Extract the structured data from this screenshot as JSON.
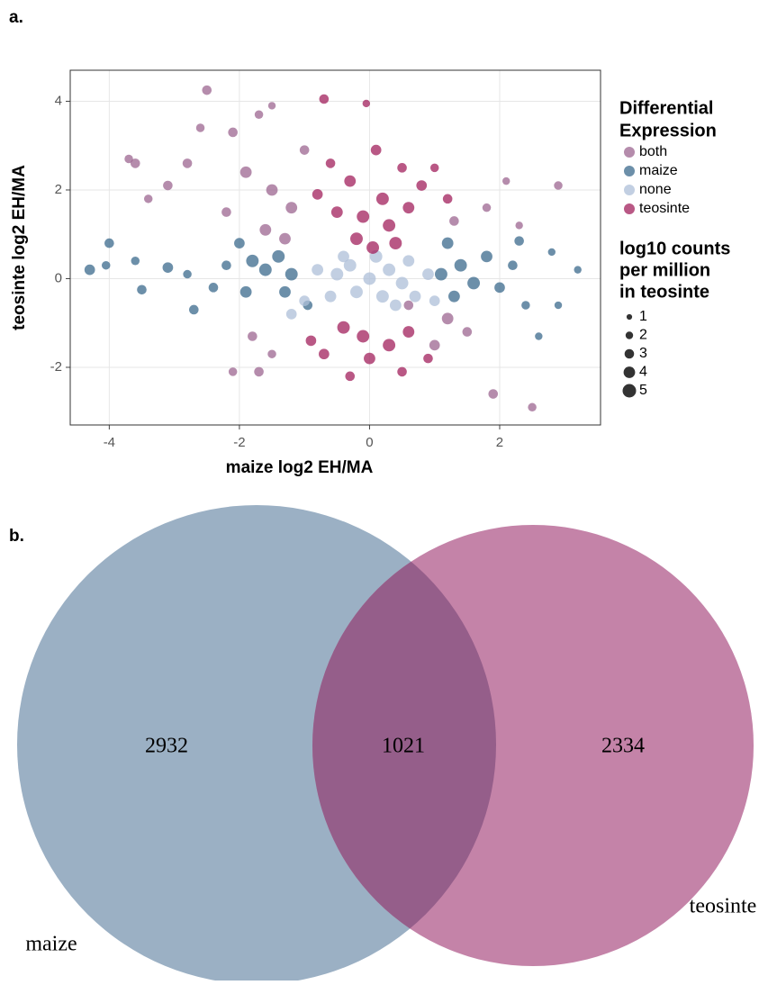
{
  "chart_data": [
    {
      "type": "scatter",
      "panel_label": "a.",
      "x_label": "maize log2 EH/MA",
      "y_label": "teosinte log2 EH/MA",
      "xlim": [
        -4.6,
        3.55
      ],
      "ylim": [
        -3.3,
        4.7
      ],
      "xticks": [
        -4,
        -2,
        0,
        2
      ],
      "yticks": [
        -2,
        0,
        2,
        4
      ],
      "grid": true,
      "legend_title": [
        "Differential",
        "Expression"
      ],
      "size_legend": {
        "title": [
          "log10 counts",
          "per million",
          "in teosinte"
        ],
        "values": [
          1,
          2,
          3,
          4,
          5
        ]
      },
      "series": [
        {
          "name": "both",
          "color": "#9c6690",
          "x": [
            -2.5,
            -1.7,
            -1.5,
            -2.1,
            -2.6,
            -3.7,
            -3.6,
            -2.8,
            -3.1,
            -3.4,
            -1.9,
            -1.5,
            -1.2,
            -2.2,
            -1.6,
            -1.0,
            -1.8,
            -1.5,
            -2.1,
            -1.7,
            1.2,
            1.5,
            1.0,
            1.3,
            1.8,
            2.3,
            2.9,
            1.9,
            2.5,
            0.6,
            -1.3,
            2.1
          ],
          "values": [
            4.25,
            3.7,
            3.9,
            3.3,
            3.4,
            2.7,
            2.6,
            2.6,
            2.1,
            1.8,
            2.4,
            2.0,
            1.6,
            1.5,
            1.1,
            2.9,
            -1.3,
            -1.7,
            -2.1,
            -2.1,
            -0.9,
            -1.2,
            -1.5,
            1.3,
            1.6,
            1.2,
            2.1,
            -2.6,
            -2.9,
            -0.6,
            0.9,
            2.2
          ],
          "sizes": [
            3,
            2.5,
            2,
            3,
            2.5,
            2.5,
            3,
            3,
            3,
            2.5,
            4,
            4,
            4,
            3,
            4,
            3,
            3,
            2.5,
            2.5,
            3,
            4,
            3,
            3.5,
            3,
            2.5,
            2,
            2.5,
            3,
            2.5,
            3,
            4,
            2
          ]
        },
        {
          "name": "maize",
          "color": "#3b6a8c",
          "x": [
            -4.3,
            -4.0,
            -4.05,
            -3.5,
            -3.1,
            -3.6,
            -2.8,
            -2.7,
            -2.2,
            -1.8,
            -1.6,
            -1.4,
            -1.2,
            -1.9,
            -1.3,
            -2.0,
            -2.4,
            1.1,
            1.4,
            1.6,
            1.3,
            1.8,
            2.0,
            2.2,
            2.4,
            2.8,
            3.2,
            2.9,
            1.2,
            2.3,
            -0.95,
            2.6
          ],
          "values": [
            0.2,
            0.8,
            0.3,
            -0.25,
            0.25,
            0.4,
            0.1,
            -0.7,
            0.3,
            0.4,
            0.2,
            0.5,
            0.1,
            -0.3,
            -0.3,
            0.8,
            -0.2,
            0.1,
            0.3,
            -0.1,
            -0.4,
            0.5,
            -0.2,
            0.3,
            -0.6,
            0.6,
            0.2,
            -0.6,
            0.8,
            0.85,
            -0.6,
            -1.3
          ],
          "sizes": [
            3.5,
            3,
            2.5,
            3,
            3.5,
            2.5,
            2.5,
            3,
            3,
            4.5,
            4.5,
            4.5,
            4.5,
            4,
            4,
            3.5,
            3,
            4.5,
            4.5,
            4.5,
            4,
            4,
            3.5,
            3,
            2.5,
            2,
            2,
            2,
            4,
            3,
            3,
            2
          ]
        },
        {
          "name": "none",
          "color": "#aebfd8",
          "x": [
            -0.5,
            -0.3,
            0,
            0.3,
            0.5,
            -0.2,
            0.2,
            0.6,
            -0.6,
            0.1,
            -0.4,
            0.7,
            0.9,
            -0.8,
            -1.2,
            0.4,
            -1.0,
            1.0
          ],
          "values": [
            0.1,
            0.3,
            0,
            0.2,
            -0.1,
            -0.3,
            -0.4,
            0.4,
            -0.4,
            0.5,
            0.5,
            -0.4,
            0.1,
            0.2,
            -0.8,
            -0.6,
            -0.5,
            -0.5
          ],
          "sizes": [
            4.5,
            4.5,
            4.5,
            4.5,
            4.5,
            4.5,
            4.5,
            4,
            4,
            4.5,
            4,
            4,
            4,
            4,
            3.5,
            4,
            3.5,
            3.5
          ]
        },
        {
          "name": "teosinte",
          "color": "#a1205c",
          "x": [
            -0.7,
            -0.05,
            0.1,
            0.5,
            -0.3,
            0.2,
            -0.1,
            0.3,
            0.6,
            -0.5,
            -0.8,
            0.8,
            1.0,
            -0.2,
            0.4,
            -0.1,
            0.3,
            -0.4,
            0.6,
            0.0,
            -0.7,
            0.5,
            -0.3,
            0.9,
            -0.9,
            1.2,
            0.05,
            -0.6
          ],
          "values": [
            4.05,
            3.95,
            2.9,
            2.5,
            2.2,
            1.8,
            1.4,
            1.2,
            1.6,
            1.5,
            1.9,
            2.1,
            2.5,
            0.9,
            0.8,
            -1.3,
            -1.5,
            -1.1,
            -1.2,
            -1.8,
            -1.7,
            -2.1,
            -2.2,
            -1.8,
            -1.4,
            1.8,
            0.7,
            2.6
          ],
          "sizes": [
            3,
            2,
            3.5,
            3,
            4,
            4.5,
            4.5,
            4.5,
            4,
            4,
            3.5,
            3.5,
            2.5,
            4.5,
            4.5,
            4.5,
            4.5,
            4.5,
            4,
            4,
            3.5,
            3,
            3,
            3,
            3.5,
            3,
            4.5,
            3
          ]
        }
      ]
    },
    {
      "type": "venn",
      "panel_label": "b.",
      "sets": [
        {
          "name": "maize",
          "color": "#9bb0c4",
          "value": 2932
        },
        {
          "name": "teosinte",
          "color": "#c483a8",
          "value": 2334
        }
      ],
      "overlap": {
        "value": 1021,
        "color": "#955e8a"
      }
    }
  ]
}
